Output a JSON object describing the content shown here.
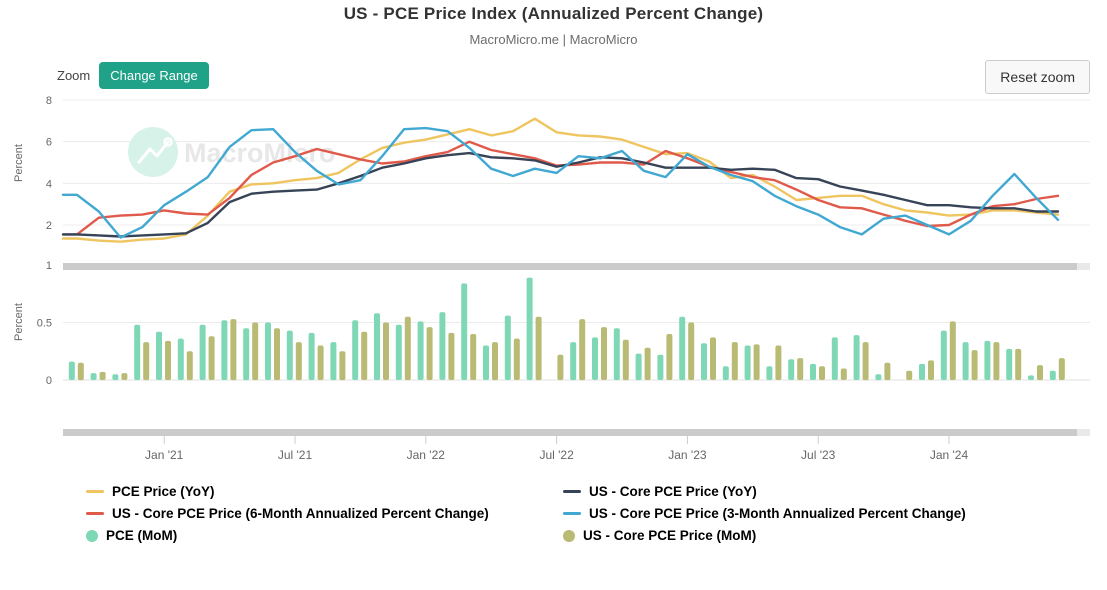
{
  "header": {
    "title": "US - PCE Price Index (Annualized Percent Change)",
    "subtitle": "MacroMicro.me | MacroMicro"
  },
  "toolbar": {
    "zoom_label": "Zoom",
    "change_range_label": "Change Range",
    "reset_zoom_label": "Reset zoom"
  },
  "watermark": {
    "text": "MacroMicro"
  },
  "colors": {
    "accent_green": "#1fa287",
    "pce_yoy": "#efc55f",
    "core_6m": "#e05a4b",
    "core_yoy": "#374357",
    "core_3m": "#41a8d2",
    "pce_mom": "#7fd8b5",
    "core_mom": "#b9ba74",
    "watermark_circle": "#d7f2e8",
    "watermark_text": "#e7e7e7",
    "grid": "#ececec",
    "baseline": "#e0e0e0",
    "axis_text": "#666666",
    "scrollbar_thumb": "#cbcbcb",
    "scrollbar_track": "#e9e9e9",
    "tick": "#cccccc"
  },
  "x_axis": {
    "tick_labels": [
      "Jan '21",
      "Jul '21",
      "Jan '22",
      "Jul '22",
      "Jan '23",
      "Jul '23",
      "Jan '24"
    ],
    "tick_month_indices": [
      4,
      10,
      16,
      22,
      28,
      34,
      40
    ]
  },
  "chart_data": [
    {
      "type": "line",
      "panel": "top",
      "ylabel": "Percent",
      "y_ticks": [
        8,
        6,
        4,
        2
      ],
      "ylim": [
        0.5,
        8.5
      ],
      "grid": true,
      "categories": [
        "2020-09",
        "2020-10",
        "2020-11",
        "2020-12",
        "2021-01",
        "2021-02",
        "2021-03",
        "2021-04",
        "2021-05",
        "2021-06",
        "2021-07",
        "2021-08",
        "2021-09",
        "2021-10",
        "2021-11",
        "2021-12",
        "2022-01",
        "2022-02",
        "2022-03",
        "2022-04",
        "2022-05",
        "2022-06",
        "2022-07",
        "2022-08",
        "2022-09",
        "2022-10",
        "2022-11",
        "2022-12",
        "2023-01",
        "2023-02",
        "2023-03",
        "2023-04",
        "2023-05",
        "2023-06",
        "2023-07",
        "2023-08",
        "2023-09",
        "2023-10",
        "2023-11",
        "2023-12",
        "2024-01",
        "2024-02",
        "2024-03",
        "2024-04",
        "2024-05",
        "2024-06"
      ],
      "series": [
        {
          "name": "PCE Price (YoY)",
          "color_key": "pce_yoy",
          "values": [
            1.35,
            1.25,
            1.2,
            1.3,
            1.35,
            1.55,
            2.45,
            3.6,
            3.95,
            4.0,
            4.15,
            4.25,
            4.5,
            5.15,
            5.7,
            5.95,
            6.1,
            6.35,
            6.6,
            6.3,
            6.5,
            7.1,
            6.45,
            6.3,
            6.25,
            6.1,
            5.75,
            5.4,
            5.45,
            5.05,
            4.25,
            4.4,
            3.85,
            3.2,
            3.3,
            3.4,
            3.4,
            3.0,
            2.7,
            2.6,
            2.45,
            2.5,
            2.7,
            2.7,
            2.6,
            2.5
          ]
        },
        {
          "name": "US - Core PCE Price (6-Month Annualized Percent Change)",
          "color_key": "core_6m",
          "values": [
            1.55,
            2.35,
            2.45,
            2.5,
            2.7,
            2.55,
            2.5,
            3.3,
            4.4,
            5.0,
            5.3,
            5.65,
            5.4,
            5.15,
            4.95,
            5.05,
            5.3,
            5.5,
            6.0,
            5.6,
            5.4,
            5.2,
            4.85,
            4.9,
            5.0,
            5.0,
            4.9,
            5.55,
            5.2,
            4.8,
            4.55,
            4.3,
            4.15,
            3.7,
            3.2,
            2.85,
            2.8,
            2.5,
            2.2,
            1.95,
            2.0,
            2.5,
            2.9,
            3.0,
            3.25,
            3.4
          ]
        },
        {
          "name": "US - Core PCE Price (YoY)",
          "color_key": "core_yoy",
          "values": [
            1.55,
            1.5,
            1.45,
            1.5,
            1.55,
            1.6,
            2.1,
            3.1,
            3.5,
            3.6,
            3.65,
            3.7,
            4.0,
            4.35,
            4.75,
            4.95,
            5.2,
            5.35,
            5.45,
            5.25,
            5.2,
            5.1,
            4.8,
            5.0,
            5.25,
            5.2,
            5.0,
            4.75,
            4.75,
            4.75,
            4.65,
            4.7,
            4.65,
            4.25,
            4.2,
            3.85,
            3.65,
            3.45,
            3.2,
            2.95,
            2.95,
            2.85,
            2.8,
            2.8,
            2.65,
            2.65
          ]
        },
        {
          "name": "US - Core PCE Price (3-Month Annualized Percent Change)",
          "color_key": "core_3m",
          "values": [
            3.45,
            2.65,
            1.4,
            1.9,
            2.95,
            3.6,
            4.3,
            5.75,
            6.55,
            6.6,
            5.5,
            4.6,
            3.95,
            4.15,
            5.3,
            6.6,
            6.65,
            6.5,
            5.7,
            4.7,
            4.35,
            4.7,
            4.5,
            5.3,
            5.2,
            5.55,
            4.6,
            4.3,
            5.4,
            4.8,
            4.4,
            4.1,
            3.4,
            2.9,
            2.5,
            1.9,
            1.55,
            2.3,
            2.45,
            2.0,
            1.55,
            2.2,
            3.4,
            4.45,
            3.3,
            2.25
          ]
        }
      ]
    },
    {
      "type": "bar",
      "panel": "bottom",
      "ylabel": "Percent",
      "y_ticks": [
        1,
        0.5,
        0
      ],
      "ylim": [
        0,
        1
      ],
      "grid": true,
      "categories": [
        "2020-09",
        "2020-10",
        "2020-11",
        "2020-12",
        "2021-01",
        "2021-02",
        "2021-03",
        "2021-04",
        "2021-05",
        "2021-06",
        "2021-07",
        "2021-08",
        "2021-09",
        "2021-10",
        "2021-11",
        "2021-12",
        "2022-01",
        "2022-02",
        "2022-03",
        "2022-04",
        "2022-05",
        "2022-06",
        "2022-07",
        "2022-08",
        "2022-09",
        "2022-10",
        "2022-11",
        "2022-12",
        "2023-01",
        "2023-02",
        "2023-03",
        "2023-04",
        "2023-05",
        "2023-06",
        "2023-07",
        "2023-08",
        "2023-09",
        "2023-10",
        "2023-11",
        "2023-12",
        "2024-01",
        "2024-02",
        "2024-03",
        "2024-04",
        "2024-05",
        "2024-06"
      ],
      "series": [
        {
          "name": "PCE (MoM)",
          "color_key": "pce_mom",
          "values": [
            0.16,
            0.06,
            0.05,
            0.48,
            0.42,
            0.36,
            0.48,
            0.52,
            0.45,
            0.5,
            0.43,
            0.41,
            0.33,
            0.52,
            0.58,
            0.48,
            0.51,
            0.59,
            0.84,
            0.3,
            0.56,
            0.89,
            -0.04,
            0.33,
            0.37,
            0.45,
            0.23,
            0.22,
            0.55,
            0.32,
            0.12,
            0.3,
            0.12,
            0.18,
            0.14,
            0.37,
            0.39,
            0.05,
            -0.07,
            0.14,
            0.43,
            0.33,
            0.34,
            0.27,
            0.04,
            0.08
          ]
        },
        {
          "name": "US - Core PCE Price (MoM)",
          "color_key": "core_mom",
          "values": [
            0.15,
            0.07,
            0.06,
            0.33,
            0.34,
            0.25,
            0.38,
            0.53,
            0.5,
            0.45,
            0.33,
            0.3,
            0.25,
            0.42,
            0.5,
            0.55,
            0.46,
            0.41,
            0.4,
            0.33,
            0.36,
            0.55,
            0.22,
            0.53,
            0.46,
            0.35,
            0.28,
            0.4,
            0.5,
            0.37,
            0.33,
            0.31,
            0.3,
            0.19,
            0.12,
            0.1,
            0.33,
            0.15,
            0.08,
            0.17,
            0.51,
            0.26,
            0.33,
            0.27,
            0.13,
            0.19
          ]
        }
      ]
    }
  ],
  "legend": {
    "columns": [
      {
        "items": [
          {
            "label": "PCE Price (YoY)",
            "marker": "line",
            "color_key": "pce_yoy"
          },
          {
            "label": "US - Core PCE Price (6-Month Annualized Percent Change)",
            "marker": "line",
            "color_key": "core_6m"
          },
          {
            "label": "PCE (MoM)",
            "marker": "circle",
            "color_key": "pce_mom"
          }
        ]
      },
      {
        "items": [
          {
            "label": "US - Core PCE Price (YoY)",
            "marker": "line",
            "color_key": "core_yoy"
          },
          {
            "label": "US - Core PCE Price (3-Month Annualized Percent Change)",
            "marker": "line",
            "color_key": "core_3m"
          },
          {
            "label": "US - Core PCE Price (MoM)",
            "marker": "circle",
            "color_key": "core_mom"
          }
        ]
      }
    ]
  }
}
